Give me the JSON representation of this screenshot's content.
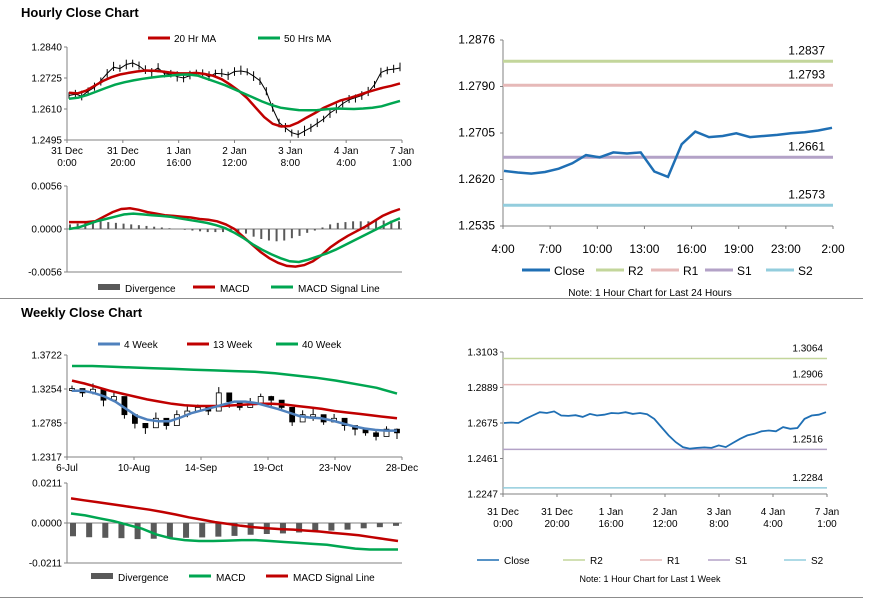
{
  "sections": {
    "hourly_title": "Hourly Close Chart",
    "weekly_title": "Weekly Close Chart"
  },
  "chart_data": [
    {
      "id": "hourly_price",
      "type": "line",
      "title": "",
      "ylim": [
        1.2495,
        1.284
      ],
      "yticks": [
        "1.2840",
        "1.2725",
        "1.2610",
        "1.2495"
      ],
      "xticks": [
        [
          "31 Dec",
          "0:00"
        ],
        [
          "31 Dec",
          "20:00"
        ],
        [
          "1 Jan",
          "16:00"
        ],
        [
          "2 Jan",
          "12:00"
        ],
        [
          "3 Jan",
          "8:00"
        ],
        [
          "4 Jan",
          "4:00"
        ],
        [
          "7 Jan",
          "1:00"
        ]
      ],
      "legend": [
        {
          "name": "20 Hr MA",
          "color": "#c00000"
        },
        {
          "name": "50 Hrs MA",
          "color": "#00a651"
        }
      ],
      "series": [
        {
          "name": "Close",
          "color": "#000000",
          "values": [
            1.266,
            1.2665,
            1.2658,
            1.2676,
            1.269,
            1.2715,
            1.2742,
            1.2765,
            1.276,
            1.2775,
            1.2781,
            1.277,
            1.2752,
            1.2748,
            1.2762,
            1.2741,
            1.2739,
            1.273,
            1.2725,
            1.2734,
            1.2744,
            1.2741,
            1.273,
            1.2742,
            1.2741,
            1.2736,
            1.2749,
            1.2751,
            1.2747,
            1.2732,
            1.2715,
            1.2675,
            1.2612,
            1.256,
            1.254,
            1.2522,
            1.2515,
            1.2528,
            1.2541,
            1.2557,
            1.2573,
            1.2595,
            1.261,
            1.263,
            1.2644,
            1.2652,
            1.266,
            1.2672,
            1.27,
            1.2745,
            1.2755,
            1.2758,
            1.2762
          ]
        },
        {
          "name": "20 Hr MA",
          "color": "#c00000",
          "values": [
            1.267,
            1.2668,
            1.2678,
            1.2696,
            1.2714,
            1.2728,
            1.2738,
            1.2744,
            1.2749,
            1.2753,
            1.2752,
            1.2749,
            1.2745,
            1.2742,
            1.2742,
            1.2744,
            1.274,
            1.2733,
            1.272,
            1.27,
            1.2678,
            1.265,
            1.2615,
            1.258,
            1.2555,
            1.2545,
            1.2547,
            1.256,
            1.2578,
            1.2595,
            1.2614,
            1.2628,
            1.2642,
            1.265,
            1.266,
            1.2671,
            1.268,
            1.2689,
            1.2696,
            1.2705
          ]
        },
        {
          "name": "50 Hrs MA",
          "color": "#00a651",
          "values": [
            1.2648,
            1.2652,
            1.2662,
            1.2675,
            1.2688,
            1.27,
            1.2709,
            1.2716,
            1.2722,
            1.2727,
            1.2731,
            1.2734,
            1.2737,
            1.2738,
            1.2734,
            1.2722,
            1.271,
            1.2698,
            1.2683,
            1.2668,
            1.2653,
            1.2638,
            1.2625,
            1.2615,
            1.261,
            1.2606,
            1.2605,
            1.2606,
            1.2609,
            1.2612,
            1.2611,
            1.261,
            1.2612,
            1.2615,
            1.262,
            1.263,
            1.264
          ]
        }
      ]
    },
    {
      "id": "hourly_macd",
      "type": "line",
      "ylim": [
        -0.0056,
        0.0056
      ],
      "yticks": [
        "0.0056",
        "0.0000",
        "-0.0056"
      ],
      "legend": [
        {
          "name": "Divergence",
          "color": "#595959"
        },
        {
          "name": "MACD",
          "color": "#c00000"
        },
        {
          "name": "MACD Signal Line",
          "color": "#00a651"
        }
      ],
      "series": [
        {
          "name": "Divergence",
          "color": "#595959",
          "values": [
            0.0006,
            0.0007,
            0.0008,
            0.0009,
            0.001,
            0.0009,
            0.0008,
            0.0007,
            0.0006,
            0.0005,
            0.0004,
            0.0003,
            0.0002,
            0.0001,
            0.0,
            -0.0001,
            -0.0002,
            -0.0003,
            -0.0004,
            -0.0004,
            -0.0004,
            -0.0004,
            -0.0005,
            -0.0006,
            -0.001,
            -0.0013,
            -0.0015,
            -0.0016,
            -0.0015,
            -0.0012,
            -0.0009,
            -0.0005,
            -0.0002,
            0.0002,
            0.0006,
            0.0008,
            0.0009,
            0.001,
            0.001,
            0.001,
            0.0011,
            0.0011,
            0.0011,
            0.001
          ]
        },
        {
          "name": "MACD",
          "color": "#c00000",
          "values": [
            0.0009,
            0.0009,
            0.0009,
            0.001,
            0.0016,
            0.0022,
            0.0026,
            0.0027,
            0.0025,
            0.0022,
            0.002,
            0.0018,
            0.0017,
            0.0016,
            0.0015,
            0.0013,
            0.0012,
            0.001,
            0.0006,
            0.0,
            -0.001,
            -0.002,
            -0.003,
            -0.0038,
            -0.0044,
            -0.0048,
            -0.0049,
            -0.0047,
            -0.0042,
            -0.0034,
            -0.0024,
            -0.0016,
            -0.0009,
            -0.0003,
            0.0003,
            0.001,
            0.0017,
            0.0022,
            0.0026
          ]
        },
        {
          "name": "MACD Signal Line",
          "color": "#00a651",
          "values": [
            0.0,
            0.0002,
            0.0006,
            0.001,
            0.0013,
            0.0016,
            0.0019,
            0.002,
            0.0019,
            0.0018,
            0.0017,
            0.0016,
            0.0014,
            0.0012,
            0.001,
            0.0008,
            0.0005,
            0.0001,
            -0.0005,
            -0.0012,
            -0.002,
            -0.0027,
            -0.0033,
            -0.0038,
            -0.0042,
            -0.0043,
            -0.004,
            -0.0036,
            -0.0032,
            -0.0027,
            -0.0021,
            -0.0015,
            -0.0009,
            -0.0003,
            0.0003,
            0.0009,
            0.0014
          ]
        }
      ]
    },
    {
      "id": "hourly_24h",
      "type": "line",
      "ylim": [
        1.2535,
        1.2876
      ],
      "yticks": [
        "1.2876",
        "1.2790",
        "1.2705",
        "1.2620",
        "1.2535"
      ],
      "xticks": [
        "4:00",
        "7:00",
        "10:00",
        "13:00",
        "16:00",
        "19:00",
        "23:00",
        "2:00"
      ],
      "levels": [
        {
          "name": "R2",
          "value": 1.2837,
          "label": "1.2837",
          "color": "#c3d69b"
        },
        {
          "name": "R1",
          "value": 1.2793,
          "label": "1.2793",
          "color": "#e6b9b8"
        },
        {
          "name": "S1",
          "value": 1.2661,
          "label": "1.2661",
          "color": "#b3a2c7"
        },
        {
          "name": "S2",
          "value": 1.2573,
          "label": "1.2573",
          "color": "#93cddd"
        }
      ],
      "series": [
        {
          "name": "Close",
          "color": "#1f6fb4",
          "values": [
            1.2636,
            1.2633,
            1.2631,
            1.2634,
            1.264,
            1.265,
            1.2665,
            1.2661,
            1.267,
            1.2668,
            1.267,
            1.2635,
            1.2625,
            1.2685,
            1.2708,
            1.2698,
            1.27,
            1.2705,
            1.2698,
            1.27,
            1.2702,
            1.2705,
            1.2707,
            1.271,
            1.2715
          ]
        }
      ],
      "legend": [
        "Close",
        "R2",
        "R1",
        "S1",
        "S2"
      ],
      "note": "Note: 1 Hour Chart for Last 24 Hours"
    },
    {
      "id": "weekly_price",
      "type": "line",
      "ylim": [
        1.2317,
        1.3722
      ],
      "yticks": [
        "1.3722",
        "1.3254",
        "1.2785",
        "1.2317"
      ],
      "xticks": [
        "6-Jul",
        "10-Aug",
        "14-Sep",
        "19-Oct",
        "23-Nov",
        "28-Dec"
      ],
      "legend": [
        {
          "name": "4 Week",
          "color": "#4f81bd"
        },
        {
          "name": "13 Week",
          "color": "#c00000"
        },
        {
          "name": "40 Week",
          "color": "#00a651"
        }
      ],
      "series": [
        {
          "name": "Close",
          "color": "#000000",
          "values": [
            1.326,
            1.32,
            1.325,
            1.31,
            1.315,
            1.29,
            1.278,
            1.272,
            1.285,
            1.275,
            1.29,
            1.295,
            1.3,
            1.295,
            1.32,
            1.308,
            1.3,
            1.305,
            1.315,
            1.31,
            1.3,
            1.28,
            1.29,
            1.29,
            1.28,
            1.285,
            1.275,
            1.27,
            1.265,
            1.26,
            1.27,
            1.265
          ]
        },
        {
          "name": "4 Week",
          "color": "#4f81bd",
          "values": [
            1.323,
            1.323,
            1.32,
            1.315,
            1.308,
            1.298,
            1.288,
            1.283,
            1.281,
            1.281,
            1.286,
            1.292,
            1.296,
            1.3,
            1.304,
            1.308,
            1.308,
            1.306,
            1.302,
            1.298,
            1.293,
            1.288,
            1.286,
            1.285,
            1.282,
            1.278,
            1.274,
            1.271,
            1.269,
            1.268,
            1.268
          ]
        },
        {
          "name": "13 Week",
          "color": "#c00000",
          "values": [
            1.337,
            1.333,
            1.328,
            1.323,
            1.319,
            1.315,
            1.311,
            1.308,
            1.305,
            1.303,
            1.302,
            1.302,
            1.302,
            1.303,
            1.304,
            1.305,
            1.305,
            1.304,
            1.302,
            1.3,
            1.298,
            1.295,
            1.293,
            1.291,
            1.289,
            1.287,
            1.285
          ]
        },
        {
          "name": "40 Week",
          "color": "#00a651",
          "values": [
            1.357,
            1.357,
            1.356,
            1.355,
            1.354,
            1.353,
            1.352,
            1.351,
            1.35,
            1.349,
            1.347,
            1.344,
            1.341,
            1.337,
            1.332,
            1.327,
            1.319
          ]
        }
      ]
    },
    {
      "id": "weekly_macd",
      "type": "line",
      "ylim": [
        -0.0211,
        0.0211
      ],
      "yticks": [
        "0.0211",
        "0.0000",
        "-0.0211"
      ],
      "legend": [
        {
          "name": "Divergence",
          "color": "#595959"
        },
        {
          "name": "MACD",
          "color": "#00a651"
        },
        {
          "name": "MACD Signal Line",
          "color": "#c00000"
        }
      ],
      "series": [
        {
          "name": "Divergence",
          "color": "#595959",
          "values": [
            -0.007,
            -0.0075,
            -0.0078,
            -0.008,
            -0.0085,
            -0.0083,
            -0.008,
            -0.0078,
            -0.0076,
            -0.0072,
            -0.0068,
            -0.0062,
            -0.0058,
            -0.0055,
            -0.005,
            -0.0046,
            -0.004,
            -0.0035,
            -0.0028,
            -0.0022,
            -0.0015
          ]
        },
        {
          "name": "MACD",
          "color": "#00a651",
          "values": [
            0.005,
            0.004,
            0.0025,
            0.001,
            -0.001,
            -0.003,
            -0.006,
            -0.008,
            -0.009,
            -0.0095,
            -0.0095,
            -0.0093,
            -0.009,
            -0.009,
            -0.0095,
            -0.01,
            -0.0105,
            -0.011,
            -0.0115,
            -0.0125,
            -0.0135,
            -0.014,
            -0.014,
            -0.014
          ]
        },
        {
          "name": "MACD Signal Line",
          "color": "#c00000",
          "values": [
            0.013,
            0.012,
            0.011,
            0.01,
            0.009,
            0.008,
            0.007,
            0.0058,
            0.0045,
            0.003,
            0.0018,
            0.0005,
            -0.0005,
            -0.0015,
            -0.0022,
            -0.0028,
            -0.0032,
            -0.0035,
            -0.004,
            -0.0045,
            -0.0052,
            -0.0058,
            -0.0065,
            -0.0075,
            -0.0085,
            -0.0095
          ]
        }
      ]
    },
    {
      "id": "weekly_1w",
      "type": "line",
      "ylim": [
        1.2247,
        1.3103
      ],
      "yticks": [
        "1.3103",
        "1.2889",
        "1.2675",
        "1.2461",
        "1.2247"
      ],
      "xticks": [
        [
          "31 Dec",
          "0:00"
        ],
        [
          "31 Dec",
          "20:00"
        ],
        [
          "1 Jan",
          "16:00"
        ],
        [
          "2 Jan",
          "12:00"
        ],
        [
          "3 Jan",
          "8:00"
        ],
        [
          "4 Jan",
          "4:00"
        ],
        [
          "7 Jan",
          "1:00"
        ]
      ],
      "levels": [
        {
          "name": "R2",
          "value": 1.3064,
          "label": "1.3064",
          "color": "#c3d69b"
        },
        {
          "name": "R1",
          "value": 1.2906,
          "label": "1.2906",
          "color": "#e6b9b8"
        },
        {
          "name": "S1",
          "value": 1.2516,
          "label": "1.2516",
          "color": "#b3a2c7"
        },
        {
          "name": "S2",
          "value": 1.2284,
          "label": "1.2284",
          "color": "#93cddd"
        }
      ],
      "series": [
        {
          "name": "Close",
          "color": "#1f6fb4",
          "values": [
            1.2675,
            1.2678,
            1.2675,
            1.27,
            1.272,
            1.274,
            1.2735,
            1.2745,
            1.272,
            1.2718,
            1.2722,
            1.2712,
            1.273,
            1.272,
            1.2725,
            1.2735,
            1.2733,
            1.274,
            1.273,
            1.2735,
            1.2728,
            1.27,
            1.265,
            1.26,
            1.256,
            1.253,
            1.252,
            1.2525,
            1.2528,
            1.2525,
            1.254,
            1.253,
            1.2555,
            1.258,
            1.26,
            1.261,
            1.2625,
            1.263,
            1.2625,
            1.265,
            1.264,
            1.2645,
            1.27,
            1.272,
            1.2725,
            1.274
          ]
        }
      ],
      "legend": [
        "Close",
        "R2",
        "R1",
        "S1",
        "S2"
      ],
      "note": "Note: 1 Hour Chart for Last 1 Week"
    }
  ]
}
